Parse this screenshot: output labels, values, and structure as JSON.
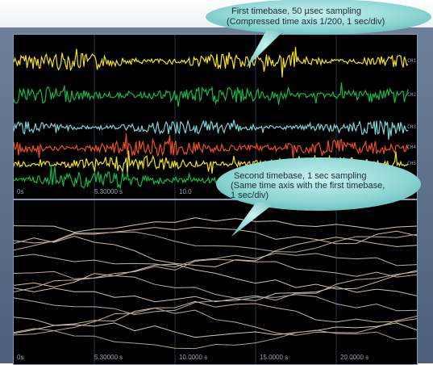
{
  "title_fragment": "",
  "annotation_top": {
    "line1": "First timebase, 50 µsec sampling",
    "line2": "(Compressed time axis 1/200, 1 sec/div)"
  },
  "annotation_bottom": {
    "line1": "Second timebase, 1 sec sampling",
    "line2": "(Same time axis with the first timebase,",
    "line3": "1 sec/div)"
  },
  "top_panel": {
    "x_ticks": [
      "0s",
      "5.30000 s",
      "10.0"
    ],
    "traces": [
      {
        "color": "#f2e31b",
        "label": "CH1"
      },
      {
        "color": "#13b845",
        "label": "CH2"
      },
      {
        "color": "#7fd3d6",
        "label": "CH3"
      },
      {
        "color": "#f0501e",
        "label": "CH4"
      },
      {
        "color": "#f2e31b",
        "label": "CH5"
      },
      {
        "color": "#13b845",
        "label": "CH6"
      }
    ]
  },
  "bottom_panel": {
    "x_ticks": [
      "0s",
      "5.30000 s",
      "10.0000 s",
      "15.0000 s",
      "20.0000 s"
    ]
  }
}
